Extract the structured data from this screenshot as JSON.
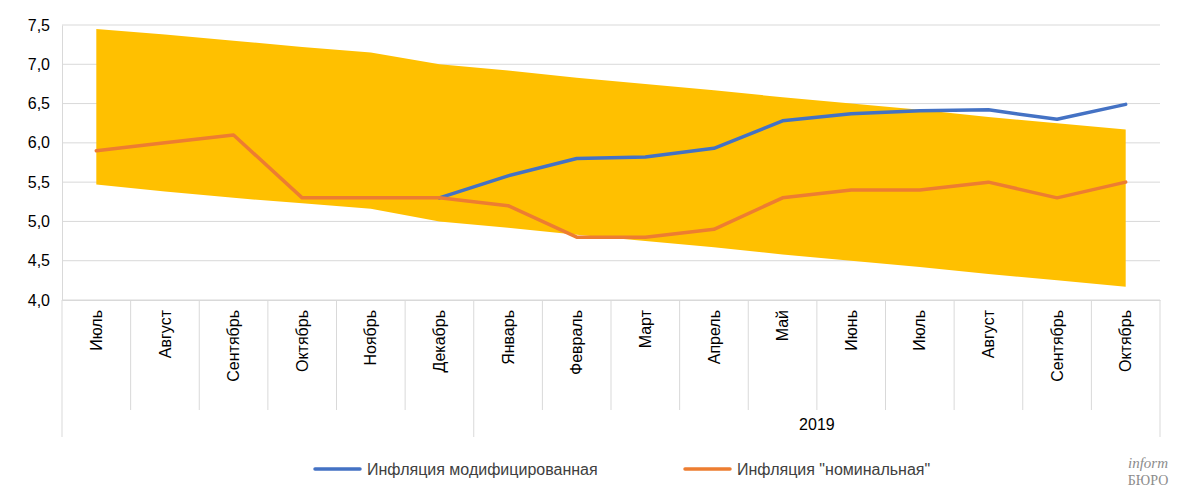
{
  "chart_data": {
    "type": "line",
    "categories": [
      "Июль",
      "Август",
      "Сентябрь",
      "Октябрь",
      "Ноябрь",
      "Декабрь",
      "Январь",
      "Февраль",
      "Март",
      "Апрель",
      "Май",
      "Июнь",
      "Июль",
      "Август",
      "Сентябрь",
      "Октябрь"
    ],
    "groups": [
      {
        "label": null,
        "start": 0,
        "end": 5
      },
      {
        "label": "2019",
        "start": 6,
        "end": 15
      }
    ],
    "band": {
      "color": "#ffc000",
      "upper": [
        7.45,
        7.38,
        7.3,
        7.22,
        7.15,
        7.0,
        6.92,
        6.83,
        6.75,
        6.67,
        6.58,
        6.5,
        6.42,
        6.33,
        6.25,
        6.17
      ],
      "lower": [
        5.47,
        5.38,
        5.3,
        5.23,
        5.16,
        5.0,
        4.92,
        4.83,
        4.75,
        4.67,
        4.58,
        4.5,
        4.42,
        4.33,
        4.25,
        4.17
      ]
    },
    "series": [
      {
        "name": "Инфляция модифицированная",
        "color": "#4472c4",
        "values": [
          null,
          null,
          null,
          null,
          null,
          5.3,
          5.58,
          5.8,
          5.82,
          5.93,
          6.28,
          6.37,
          6.41,
          6.42,
          6.3,
          6.49
        ]
      },
      {
        "name": "Инфляция \"номинальная\"",
        "color": "#ed7d31",
        "values": [
          5.9,
          6.0,
          6.1,
          5.3,
          5.3,
          5.3,
          5.2,
          4.8,
          4.8,
          4.9,
          5.3,
          5.4,
          5.4,
          5.5,
          5.3,
          5.5
        ]
      }
    ],
    "ylim": [
      4.0,
      7.5
    ],
    "yticks": [
      {
        "value": 4.0,
        "label": "4,0"
      },
      {
        "value": 4.5,
        "label": "4,5"
      },
      {
        "value": 5.0,
        "label": "5,0"
      },
      {
        "value": 5.5,
        "label": "5,5"
      },
      {
        "value": 6.0,
        "label": "6,0"
      },
      {
        "value": 6.5,
        "label": "6,5"
      },
      {
        "value": 7.0,
        "label": "7,0"
      },
      {
        "value": 7.5,
        "label": "7,5"
      }
    ],
    "grid": true,
    "legend": "bottom",
    "annotations": [
      "inform",
      "БЮРО"
    ]
  }
}
